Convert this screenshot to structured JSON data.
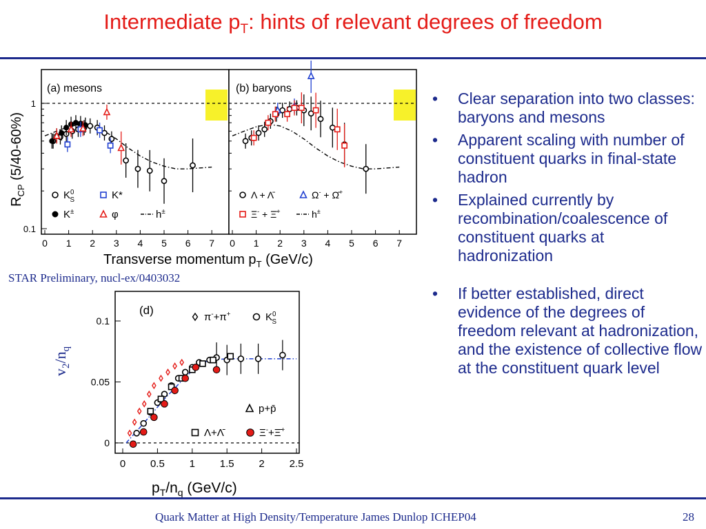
{
  "slide": {
    "title_main": "Intermediate p",
    "title_sub": "T",
    "title_rest": ": hints of relevant degrees of freedom",
    "caption": "STAR Preliminary, nucl-ex/0403032",
    "footer": "Quark Matter at High Density/Temperature James Dunlop ICHEP04",
    "page_number": "28",
    "bullets": [
      "Clear separation into two classes: baryons and mesons",
      "Apparent scaling with number of constituent quarks in final-state hadron",
      "Explained currently by recombination/coalescence of constituent quarks at hadronization",
      "If better established, direct evidence of the degrees of freedom relevant at hadronization, and the existence of collective flow at the constituent quark level"
    ],
    "bullet_symbol": "•"
  },
  "colors": {
    "title": "#e41b17",
    "text": "#1c2a8c",
    "rule": "#1c2a8c"
  },
  "chart_data": [
    {
      "type": "scatter",
      "panel": "(a) mesons",
      "ylabel_main": "R",
      "ylabel_sub": "CP",
      "ylabel_rest": " (5/40-60%)",
      "xlim": [
        0,
        8
      ],
      "ylim": [
        0.1,
        2
      ],
      "y_scale": "log",
      "y_ticks": [
        {
          "v": 1,
          "label": "1"
        },
        {
          "v": 0.1,
          "label": "0.1"
        }
      ],
      "x_ticks": [
        0,
        1,
        2,
        3,
        4,
        5,
        6,
        7
      ],
      "reference_line": 1,
      "legend": [
        {
          "marker": "circle-open",
          "color": "#000000",
          "label": "K",
          "sup": "0",
          "sub": "S"
        },
        {
          "marker": "square-open",
          "color": "#1f3fd0",
          "label": "K*"
        },
        {
          "marker": "circle-filled",
          "color": "#000000",
          "label": "K",
          "sup": "±"
        },
        {
          "marker": "triangle-open",
          "color": "#e41b17",
          "label": "φ"
        },
        {
          "marker": "dashdot",
          "color": "#000000",
          "label": "h",
          "sup": "±"
        }
      ],
      "series": [
        {
          "name": "K0S",
          "marker": "circle-open",
          "color": "#000000",
          "x": [
            0.35,
            0.65,
            0.9,
            1.15,
            1.4,
            1.65,
            1.9,
            2.2,
            2.5,
            2.8
          ],
          "y": [
            0.5,
            0.54,
            0.57,
            0.6,
            0.62,
            0.64,
            0.66,
            0.64,
            0.58,
            0.52
          ]
        },
        {
          "name": "K±",
          "marker": "circle-filled",
          "color": "#000000",
          "x": [
            0.3,
            0.5,
            0.7,
            0.9,
            1.1,
            1.3,
            1.5,
            1.7
          ],
          "y": [
            0.5,
            0.55,
            0.58,
            0.64,
            0.68,
            0.7,
            0.69,
            0.67
          ]
        },
        {
          "name": "K*",
          "marker": "square-open",
          "color": "#1f3fd0",
          "x": [
            0.95,
            1.5,
            2.3,
            2.75
          ],
          "y": [
            0.47,
            0.62,
            0.61,
            0.46
          ]
        },
        {
          "name": "φ",
          "marker": "triangle-open",
          "color": "#e41b17",
          "x": [
            0.5,
            1.1,
            1.6,
            2.6,
            3.2
          ],
          "y": [
            0.55,
            0.62,
            0.63,
            0.85,
            0.44
          ]
        },
        {
          "name": "K0S high pT",
          "marker": "circle-open",
          "color": "#000000",
          "x": [
            3.4,
            3.9,
            4.4,
            5.0,
            6.2
          ],
          "y": [
            0.35,
            0.3,
            0.29,
            0.24,
            0.32
          ]
        }
      ],
      "h_curve": {
        "x": [
          0,
          0.5,
          1,
          1.5,
          2,
          2.5,
          3,
          3.5,
          4,
          4.5,
          5,
          5.5,
          6,
          6.5,
          7
        ],
        "y": [
          0.55,
          0.6,
          0.65,
          0.68,
          0.66,
          0.6,
          0.52,
          0.44,
          0.38,
          0.34,
          0.315,
          0.3,
          0.3,
          0.305,
          0.31
        ]
      }
    },
    {
      "type": "scatter",
      "panel": "(b) baryons",
      "xlim": [
        0,
        8
      ],
      "ylim": [
        0.1,
        2
      ],
      "y_scale": "log",
      "x_ticks": [
        0,
        1,
        2,
        3,
        4,
        5,
        6,
        7
      ],
      "reference_line": 1,
      "xlabel_main": "Transverse momentum p",
      "xlabel_sub": "T",
      "xlabel_rest": " (GeV/c)",
      "legend": [
        {
          "marker": "circle-open",
          "color": "#000000",
          "label": "Λ + Λ̄"
        },
        {
          "marker": "triangle-open",
          "color": "#1f3fd0",
          "label": "Ω",
          "sup": "-",
          "rest": " + Ω̄",
          "sup2": "+"
        },
        {
          "marker": "square-open",
          "color": "#e41b17",
          "label": "Ξ",
          "sup": "-",
          "rest": " + Ξ̄",
          "sup2": "+"
        },
        {
          "marker": "dashdot",
          "color": "#000000",
          "label": "h",
          "sup": "±"
        }
      ],
      "series": [
        {
          "name": "Λ+Λ̄",
          "marker": "circle-open",
          "color": "#000000",
          "x": [
            0.55,
            0.8,
            1.1,
            1.35,
            1.6,
            1.85,
            2.1,
            2.4,
            2.7,
            3.0,
            3.3,
            3.7,
            4.2,
            4.7,
            5.6
          ],
          "y": [
            0.5,
            0.53,
            0.58,
            0.62,
            0.72,
            0.82,
            0.88,
            0.9,
            0.92,
            0.88,
            0.83,
            0.75,
            0.64,
            0.47,
            0.3
          ]
        },
        {
          "name": "Ω+Ω̄",
          "marker": "triangle-open",
          "color": "#1f3fd0",
          "x": [
            1.9,
            2.6,
            3.3
          ],
          "y": [
            0.88,
            0.95,
            1.65
          ]
        },
        {
          "name": "Ξ+Ξ̄",
          "marker": "square-open",
          "color": "#e41b17",
          "x": [
            0.9,
            1.5,
            1.8,
            2.3,
            2.6,
            2.9,
            3.5,
            4.4,
            4.7
          ],
          "y": [
            0.53,
            0.7,
            0.82,
            0.82,
            0.92,
            0.92,
            0.88,
            0.62,
            0.46
          ]
        }
      ],
      "h_curve": {
        "x": [
          0,
          0.5,
          1,
          1.5,
          2,
          2.5,
          3,
          3.5,
          4,
          4.5,
          5,
          5.5,
          6,
          6.5,
          7
        ],
        "y": [
          0.55,
          0.6,
          0.65,
          0.68,
          0.66,
          0.6,
          0.52,
          0.44,
          0.38,
          0.34,
          0.315,
          0.3,
          0.3,
          0.305,
          0.31
        ]
      }
    },
    {
      "type": "scatter",
      "panel": "(d)",
      "ylabel_main": "v",
      "ylabel_sub": "2",
      "ylabel_rest": "/n",
      "ylabel_sub2": "q",
      "xlabel_main": "p",
      "xlabel_sub": "T",
      "xlabel_rest": "/n",
      "xlabel_sub2": "q",
      "xlabel_tail": " (GeV/c)",
      "xlim": [
        0,
        2.6
      ],
      "ylim": [
        -0.008,
        0.11
      ],
      "y_ticks": [
        {
          "v": 0,
          "label": "0"
        },
        {
          "v": 0.05,
          "label": "0.05"
        },
        {
          "v": 0.1,
          "label": "0.1"
        }
      ],
      "x_ticks": [
        {
          "v": 0,
          "label": "0"
        },
        {
          "v": 0.5,
          "label": "0.5"
        },
        {
          "v": 1,
          "label": "1"
        },
        {
          "v": 1.5,
          "label": "1.5"
        },
        {
          "v": 2,
          "label": "2"
        },
        {
          "v": 2.5,
          "label": "2.5"
        }
      ],
      "reference_line": 0,
      "legend": [
        {
          "marker": "diamond-open",
          "color": "#000000",
          "label": "π",
          "sup": "-",
          "rest": "+π",
          "sup2": "+"
        },
        {
          "marker": "circle-open",
          "color": "#000000",
          "label": "K",
          "sup": "0",
          "sub": "S"
        },
        {
          "marker": "triangle-open",
          "color": "#000000",
          "label": "p+p̄"
        },
        {
          "marker": "square-open",
          "color": "#000000",
          "label": "Λ+Λ̄"
        },
        {
          "marker": "circle-filled-red",
          "color": "#e41b17",
          "label": "Ξ",
          "sup": "-",
          "rest": "+Ξ̄",
          "sup2": "+"
        }
      ],
      "series": [
        {
          "name": "π",
          "marker": "diamond-open",
          "color": "#e41b17",
          "x": [
            0.1,
            0.17,
            0.24,
            0.31,
            0.38,
            0.45,
            0.55,
            0.65,
            0.75,
            0.85
          ],
          "y": [
            0.008,
            0.017,
            0.026,
            0.032,
            0.04,
            0.047,
            0.053,
            0.058,
            0.063,
            0.066
          ]
        },
        {
          "name": "K0S",
          "marker": "circle-open",
          "color": "#000000",
          "x": [
            0.2,
            0.3,
            0.4,
            0.5,
            0.6,
            0.7,
            0.8,
            0.9,
            1.0,
            1.1,
            1.25,
            1.35,
            1.5,
            1.7,
            1.95,
            2.3
          ],
          "y": [
            0.008,
            0.016,
            0.025,
            0.033,
            0.04,
            0.047,
            0.053,
            0.058,
            0.062,
            0.066,
            0.068,
            0.07,
            0.068,
            0.069,
            0.069,
            0.072
          ]
        },
        {
          "name": "Λ",
          "marker": "square-open",
          "color": "#000000",
          "x": [
            0.4,
            0.55,
            0.7,
            0.85,
            1.0,
            1.15,
            1.3,
            1.55
          ],
          "y": [
            0.026,
            0.036,
            0.046,
            0.053,
            0.06,
            0.065,
            0.068,
            0.071
          ]
        },
        {
          "name": "Ξ",
          "marker": "circle-filled-red",
          "color": "#e41b17",
          "x": [
            0.15,
            0.3,
            0.45,
            0.6,
            0.75,
            0.9,
            1.05,
            1.35
          ],
          "y": [
            -0.001,
            0.009,
            0.021,
            0.032,
            0.043,
            0.053,
            0.062,
            0.06
          ]
        }
      ],
      "fit_curve": {
        "x": [
          0.05,
          0.3,
          0.6,
          0.9,
          1.1,
          1.25,
          1.5,
          2.0,
          2.5
        ],
        "y": [
          0.0,
          0.016,
          0.036,
          0.054,
          0.064,
          0.068,
          0.069,
          0.069,
          0.069
        ]
      }
    }
  ]
}
